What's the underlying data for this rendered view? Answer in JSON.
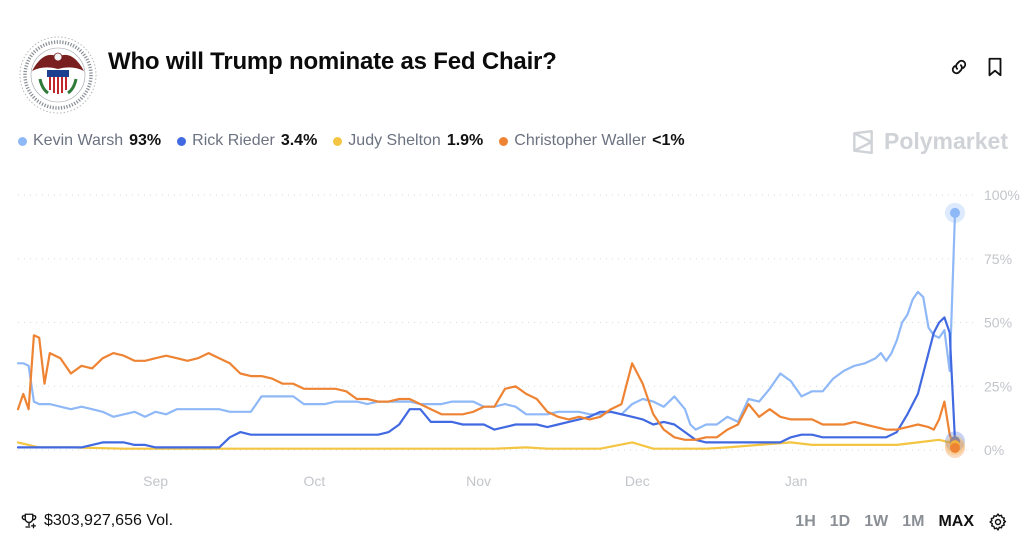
{
  "header": {
    "title": "Who will Trump nominate as Fed Chair?",
    "logo_text": "BOARD OF GOVERNORS OF THE FEDERAL RESERVE SYSTEM",
    "icons": [
      "link-icon",
      "bookmark-icon"
    ]
  },
  "legend": [
    {
      "name": "Kevin Warsh",
      "value": "93%",
      "color": "#8FB8F7"
    },
    {
      "name": "Rick Rieder",
      "value": "3.4%",
      "color": "#4169E1"
    },
    {
      "name": "Judy Shelton",
      "value": "1.9%",
      "color": "#F4C542"
    },
    {
      "name": "Christopher Waller",
      "value": "<1%",
      "color": "#EE8433"
    }
  ],
  "brand": {
    "name": "Polymarket"
  },
  "footer": {
    "volume": "$303,927,656 Vol.",
    "ranges": [
      "1H",
      "1D",
      "1W",
      "1M",
      "MAX"
    ],
    "active_range": "MAX"
  },
  "chart_data": {
    "type": "line",
    "title": "",
    "xlabel": "",
    "ylabel": "",
    "ylim": [
      0,
      100
    ],
    "xlim": [
      0,
      177
    ],
    "grid": true,
    "legend_position": "top-left",
    "yticks": [
      {
        "value": 100,
        "label": "100%"
      },
      {
        "value": 75,
        "label": "75%"
      },
      {
        "value": 50,
        "label": "50%"
      },
      {
        "value": 25,
        "label": "25%"
      },
      {
        "value": 0,
        "label": "0%"
      }
    ],
    "xticks": [
      {
        "value": 26,
        "label": "Sep"
      },
      {
        "value": 56,
        "label": "Oct"
      },
      {
        "value": 87,
        "label": "Nov"
      },
      {
        "value": 117,
        "label": "Dec"
      },
      {
        "value": 147,
        "label": "Jan"
      }
    ],
    "series": [
      {
        "name": "Kevin Warsh",
        "color": "#8FB8F7",
        "x": [
          0,
          1,
          2,
          3,
          4,
          6,
          8,
          10,
          12,
          14,
          16,
          18,
          20,
          22,
          24,
          26,
          28,
          30,
          32,
          34,
          36,
          38,
          40,
          42,
          44,
          46,
          48,
          50,
          52,
          54,
          56,
          58,
          60,
          62,
          64,
          66,
          68,
          70,
          72,
          74,
          76,
          78,
          80,
          82,
          84,
          86,
          88,
          90,
          92,
          94,
          96,
          98,
          100,
          102,
          104,
          106,
          108,
          110,
          112,
          114,
          116,
          118,
          120,
          122,
          124,
          126,
          127,
          128,
          130,
          132,
          134,
          136,
          138,
          140,
          142,
          144,
          146,
          148,
          150,
          152,
          154,
          156,
          158,
          160,
          162,
          163,
          164,
          165,
          166,
          167,
          168,
          169,
          170,
          171,
          172,
          173,
          174,
          175,
          176,
          177
        ],
        "values": [
          34,
          34,
          33,
          19,
          18,
          18,
          17,
          16,
          17,
          16,
          15,
          13,
          14,
          15,
          13,
          15,
          14,
          16,
          16,
          16,
          16,
          16,
          15,
          15,
          15,
          21,
          21,
          21,
          21,
          18,
          18,
          18,
          19,
          19,
          19,
          18,
          19,
          19,
          19,
          19,
          18,
          18,
          18,
          19,
          19,
          19,
          17,
          17,
          18,
          17,
          14,
          14,
          14,
          15,
          15,
          15,
          14,
          14,
          15,
          14,
          18,
          20,
          19,
          17,
          21,
          16,
          10,
          8,
          10,
          10,
          13,
          11,
          20,
          19,
          24,
          30,
          27,
          21,
          23,
          23,
          28,
          31,
          33,
          34,
          36,
          38,
          35,
          38,
          43,
          50,
          53,
          59,
          62,
          60,
          48,
          45,
          44,
          47,
          31,
          93
        ]
      },
      {
        "name": "Rick Rieder",
        "color": "#4169E1",
        "x": [
          0,
          2,
          4,
          6,
          8,
          10,
          12,
          14,
          16,
          18,
          20,
          22,
          24,
          26,
          28,
          30,
          32,
          34,
          36,
          38,
          40,
          42,
          44,
          46,
          48,
          50,
          52,
          54,
          56,
          58,
          60,
          62,
          64,
          66,
          68,
          70,
          72,
          74,
          76,
          78,
          80,
          82,
          84,
          86,
          88,
          90,
          92,
          94,
          96,
          98,
          100,
          102,
          104,
          106,
          108,
          110,
          112,
          114,
          116,
          118,
          120,
          122,
          124,
          126,
          128,
          130,
          132,
          134,
          136,
          138,
          140,
          142,
          144,
          146,
          148,
          150,
          152,
          154,
          156,
          158,
          160,
          162,
          164,
          166,
          168,
          170,
          171,
          172,
          173,
          174,
          175,
          176,
          177
        ],
        "values": [
          1,
          1,
          1,
          1,
          1,
          1,
          1,
          2,
          3,
          3,
          3,
          2,
          2,
          1,
          1,
          1,
          1,
          1,
          1,
          1,
          5,
          7,
          6,
          6,
          6,
          6,
          6,
          6,
          6,
          6,
          6,
          6,
          6,
          6,
          6,
          7,
          10,
          16,
          16,
          11,
          11,
          11,
          10,
          10,
          10,
          8,
          9,
          10,
          10,
          10,
          9,
          10,
          11,
          12,
          13,
          15,
          15,
          14,
          13,
          12,
          10,
          11,
          10,
          7,
          4,
          3,
          3,
          3,
          3,
          3,
          3,
          3,
          3,
          5,
          6,
          6,
          5,
          5,
          5,
          5,
          5,
          5,
          5,
          7,
          14,
          22,
          30,
          38,
          46,
          50,
          52,
          46,
          3.4
        ]
      },
      {
        "name": "Judy Shelton",
        "color": "#F4C542",
        "x": [
          0,
          2,
          4,
          6,
          8,
          10,
          20,
          30,
          40,
          50,
          60,
          70,
          80,
          90,
          96,
          100,
          110,
          116,
          120,
          126,
          130,
          134,
          140,
          146,
          150,
          156,
          160,
          166,
          170,
          174,
          176,
          177
        ],
        "values": [
          3,
          2,
          1,
          1,
          1,
          1,
          0.5,
          0.5,
          0.5,
          0.5,
          0.5,
          0.5,
          0.5,
          0.5,
          1,
          0.5,
          0.5,
          3,
          0.5,
          0.5,
          0.5,
          1,
          2,
          3,
          2,
          2,
          2,
          2,
          3,
          4,
          3,
          1.9
        ]
      },
      {
        "name": "Christopher Waller",
        "color": "#EE8433",
        "x": [
          0,
          1,
          2,
          3,
          4,
          5,
          6,
          8,
          10,
          12,
          14,
          16,
          18,
          20,
          22,
          24,
          26,
          28,
          30,
          32,
          34,
          36,
          38,
          40,
          42,
          44,
          46,
          48,
          50,
          52,
          54,
          56,
          58,
          60,
          62,
          64,
          66,
          68,
          70,
          72,
          74,
          76,
          78,
          80,
          82,
          84,
          86,
          88,
          90,
          92,
          94,
          96,
          98,
          100,
          102,
          104,
          106,
          108,
          110,
          112,
          114,
          116,
          118,
          120,
          122,
          124,
          126,
          128,
          130,
          132,
          134,
          136,
          138,
          140,
          142,
          144,
          146,
          148,
          150,
          152,
          154,
          156,
          158,
          160,
          162,
          164,
          166,
          168,
          170,
          172,
          173,
          174,
          175,
          176,
          177
        ],
        "values": [
          16,
          22,
          16,
          45,
          44,
          26,
          38,
          36,
          30,
          33,
          32,
          36,
          38,
          37,
          35,
          35,
          36,
          37,
          36,
          35,
          36,
          38,
          36,
          34,
          30,
          29,
          29,
          28,
          26,
          26,
          24,
          24,
          24,
          24,
          23,
          20,
          20,
          19,
          19,
          20,
          20,
          18,
          16,
          14,
          14,
          14,
          15,
          17,
          17,
          24,
          25,
          22,
          20,
          15,
          13,
          12,
          13,
          12,
          13,
          16,
          18,
          34,
          26,
          14,
          8,
          5,
          4,
          4,
          5,
          5,
          8,
          10,
          18,
          13,
          16,
          13,
          12,
          12,
          12,
          10,
          10,
          10,
          11,
          10,
          9,
          8,
          8,
          9,
          10,
          9,
          8,
          12,
          19,
          6,
          0.8
        ]
      }
    ]
  }
}
